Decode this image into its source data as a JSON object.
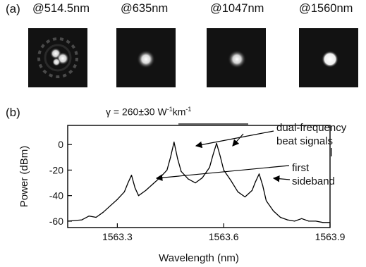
{
  "panel_a": {
    "label": "(a)",
    "images": [
      {
        "title": "@514.5nm",
        "mode": "multi-lobe"
      },
      {
        "title": "@635nm",
        "mode": "single-spot"
      },
      {
        "title": "@1047nm",
        "mode": "single-spot"
      },
      {
        "title": "@1560nm",
        "mode": "single-spot"
      }
    ]
  },
  "panel_b": {
    "label": "(b)",
    "gamma_prefix": "γ = 260",
    "gamma_pm": "±",
    "gamma_suffix": "30 W",
    "gamma_exp": "-1",
    "gamma_km": "km",
    "annotations": {
      "dual_line1": "dual-frequency",
      "dual_line2": "beat signals",
      "first_line1": "first",
      "first_line2": "sideband"
    }
  },
  "chart_data": {
    "type": "line",
    "xlabel": "Wavelength (nm)",
    "ylabel": "Power (dBm)",
    "xlim": [
      1563.16,
      1563.9
    ],
    "ylim": [
      -65,
      15
    ],
    "xticks": [
      1563.3,
      1563.6,
      1563.9
    ],
    "xticklabels": [
      "1563.3",
      "1563.6",
      "1563.9"
    ],
    "yticks": [
      -60,
      -40,
      -20,
      0
    ],
    "yticklabels": [
      "-60",
      "-40",
      "-20",
      "0"
    ],
    "grid": false,
    "series": [
      {
        "x": [
          1563.16,
          1563.2,
          1563.22,
          1563.24,
          1563.26,
          1563.28,
          1563.3,
          1563.32,
          1563.33,
          1563.34,
          1563.35,
          1563.36,
          1563.38,
          1563.4,
          1563.42,
          1563.44,
          1563.45,
          1563.46,
          1563.47,
          1563.48,
          1563.5,
          1563.52,
          1563.54,
          1563.56,
          1563.57,
          1563.58,
          1563.59,
          1563.6,
          1563.62,
          1563.64,
          1563.66,
          1563.68,
          1563.69,
          1563.7,
          1563.71,
          1563.72,
          1563.74,
          1563.76,
          1563.78,
          1563.8,
          1563.82,
          1563.84,
          1563.86,
          1563.88,
          1563.9
        ],
        "y": [
          -60,
          -59,
          -56,
          -57,
          -53,
          -48,
          -43,
          -37,
          -30,
          -24,
          -34,
          -40,
          -36,
          -31,
          -26,
          -20,
          -10,
          2,
          -11,
          -21,
          -27,
          -30,
          -26,
          -18,
          -8,
          1,
          -9,
          -20,
          -28,
          -37,
          -41,
          -36,
          -29,
          -23,
          -32,
          -44,
          -52,
          -57,
          -59,
          -60,
          -58,
          -60,
          -60,
          -61,
          -61
        ]
      }
    ]
  }
}
